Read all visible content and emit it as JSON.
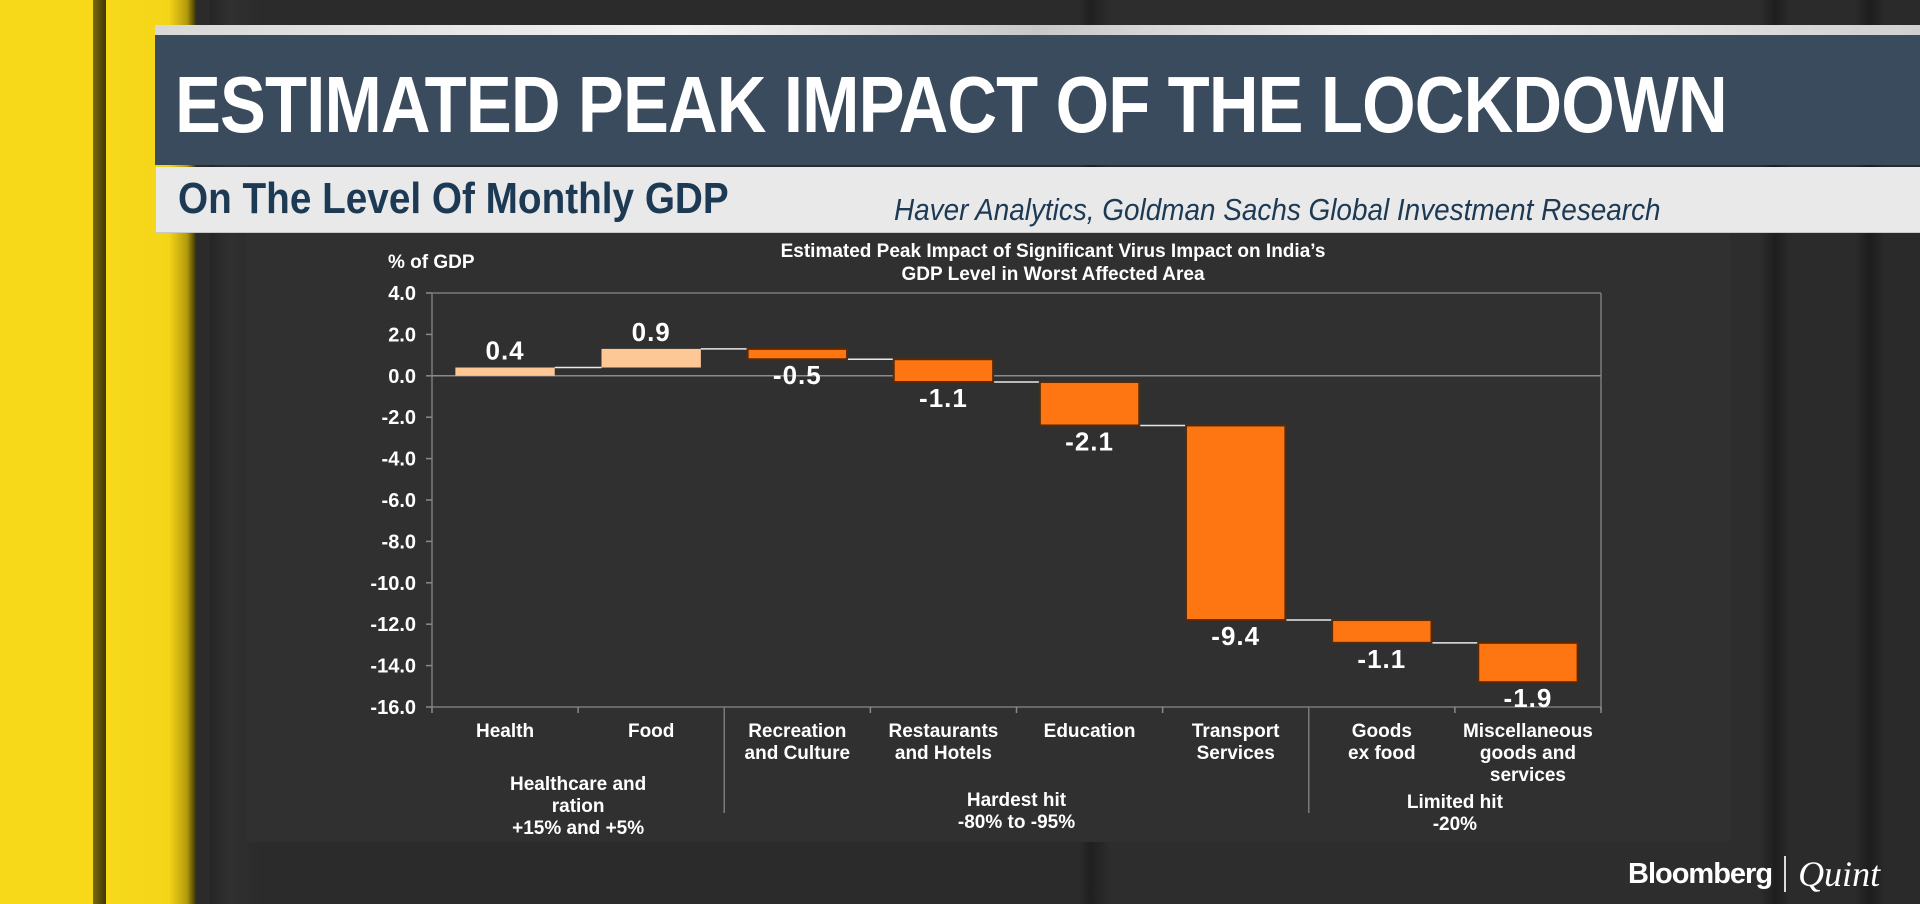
{
  "header": {
    "title": "ESTIMATED PEAK IMPACT OF THE LOCKDOWN",
    "subtitle": "On The Level Of Monthly GDP",
    "source": "Haver Analytics, Goldman Sachs Global Investment Research"
  },
  "branding": {
    "primary": "Bloomberg",
    "secondary": "Quint"
  },
  "colors": {
    "positive_bar": "#fdc896",
    "negative_bar": "#fd7612",
    "bar_outline": "#5a2a06",
    "title_bar": "#394b5d",
    "accent_yellow": "#f7d91a"
  },
  "chart_data": {
    "type": "bar",
    "subtype": "waterfall",
    "title": "Estimated Peak Impact of Significant Virus Impact on India's GDP Level in Worst Affected Area",
    "title_lines": [
      "Estimated Peak Impact of Significant Virus Impact on India’s",
      "GDP Level in Worst Affected Area"
    ],
    "ylabel": "% of GDP",
    "xlabel": "",
    "ylim": [
      -16.0,
      4.0
    ],
    "yticks": [
      "4.0",
      "2.0",
      "0.0",
      "-2.0",
      "-4.0",
      "-6.0",
      "-8.0",
      "-10.0",
      "-12.0",
      "-14.0",
      "-16.0"
    ],
    "ytick_values": [
      4,
      2,
      0,
      -2,
      -4,
      -6,
      -8,
      -10,
      -12,
      -14,
      -16
    ],
    "grid": false,
    "legend": "none",
    "categories": [
      [
        "Health"
      ],
      [
        "Food"
      ],
      [
        "Recreation",
        "and Culture"
      ],
      [
        "Restaurants",
        "and Hotels"
      ],
      [
        "Education"
      ],
      [
        "Transport",
        "Services"
      ],
      [
        "Goods",
        "ex food"
      ],
      [
        "Miscellaneous",
        "goods and",
        "services"
      ]
    ],
    "values": [
      0.4,
      0.9,
      -0.5,
      -1.1,
      -2.1,
      -9.4,
      -1.1,
      -1.9
    ],
    "data_labels": [
      "0.4",
      "0.9",
      "-0.5",
      "-1.1",
      "-2.1",
      "-9.4",
      "-1.1",
      "-1.9"
    ],
    "cumulative_end": [
      0.4,
      1.3,
      0.8,
      -0.3,
      -2.4,
      -11.8,
      -12.9,
      -14.8
    ],
    "groups": [
      {
        "label_lines": [
          "Healthcare and",
          "ration",
          "+15% and +5%"
        ],
        "start": 0,
        "end": 1
      },
      {
        "label_lines": [
          "Hardest hit",
          "-80% to -95%"
        ],
        "start": 2,
        "end": 5
      },
      {
        "label_lines": [
          "Limited hit",
          "-20%"
        ],
        "start": 6,
        "end": 7
      }
    ]
  }
}
